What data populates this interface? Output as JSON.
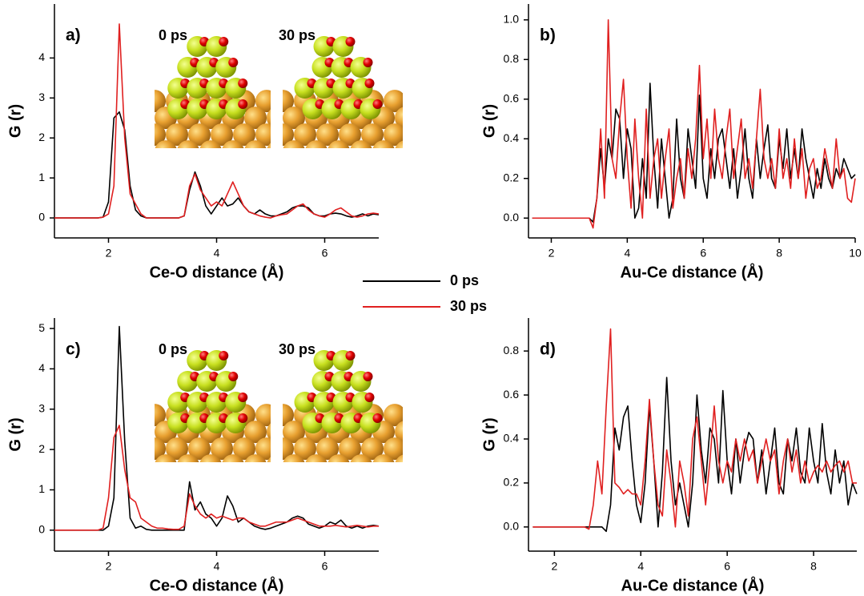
{
  "chart_data": [
    {
      "type": "line",
      "panel_label": "a)",
      "xlabel": "Ce-O distance (Å)",
      "ylabel": "G (r)",
      "inset_labels": [
        "0 ps",
        "30 ps"
      ],
      "x": [
        1,
        1.1,
        1.2,
        1.3,
        1.4,
        1.5,
        1.6,
        1.7,
        1.8,
        1.9,
        2,
        2.1,
        2.2,
        2.3,
        2.4,
        2.5,
        2.6,
        2.7,
        2.8,
        2.9,
        3,
        3.1,
        3.2,
        3.3,
        3.4,
        3.5,
        3.6,
        3.7,
        3.8,
        3.9,
        4,
        4.1,
        4.2,
        4.3,
        4.4,
        4.5,
        4.6,
        4.7,
        4.8,
        4.9,
        5,
        5.1,
        5.2,
        5.3,
        5.4,
        5.5,
        5.6,
        5.7,
        5.8,
        5.9,
        6,
        6.1,
        6.2,
        6.3,
        6.4,
        6.5,
        6.6,
        6.7,
        6.8,
        6.9,
        7
      ],
      "series": [
        {
          "name": "0 ps",
          "color": "#000000",
          "values": [
            0,
            0,
            0,
            0,
            0,
            0,
            0,
            0,
            0,
            0.02,
            0.4,
            2.5,
            2.65,
            2.2,
            0.8,
            0.2,
            0.05,
            0,
            0,
            0,
            0,
            0,
            0,
            0,
            0.05,
            0.7,
            1.15,
            0.8,
            0.3,
            0.1,
            0.3,
            0.5,
            0.3,
            0.35,
            0.5,
            0.3,
            0.15,
            0.1,
            0.2,
            0.1,
            0.05,
            0.05,
            0.1,
            0.15,
            0.25,
            0.3,
            0.3,
            0.25,
            0.1,
            0.05,
            0.05,
            0.1,
            0.12,
            0.1,
            0.05,
            0.02,
            0.05,
            0.1,
            0.05,
            0.1,
            0.08
          ]
        },
        {
          "name": "30 ps",
          "color": "#e02020",
          "values": [
            0,
            0,
            0,
            0,
            0,
            0,
            0,
            0,
            0,
            0.02,
            0.1,
            0.8,
            4.85,
            2.0,
            0.6,
            0.35,
            0.1,
            0,
            0,
            0,
            0,
            0,
            0,
            0,
            0.05,
            0.8,
            1.1,
            0.7,
            0.5,
            0.3,
            0.4,
            0.3,
            0.6,
            0.9,
            0.6,
            0.3,
            0.15,
            0.1,
            0.05,
            0.02,
            0,
            0.05,
            0.08,
            0.1,
            0.2,
            0.3,
            0.35,
            0.2,
            0.1,
            0.05,
            0.02,
            0.1,
            0.2,
            0.25,
            0.15,
            0.05,
            0.02,
            0.05,
            0.1,
            0.12,
            0.1
          ]
        }
      ],
      "xlim": [
        1,
        7
      ],
      "ylim": [
        -0.5,
        5.35
      ],
      "xticks": [
        2,
        4,
        6
      ],
      "yticks": [
        0,
        1,
        2,
        3,
        4
      ]
    },
    {
      "type": "line",
      "panel_label": "b)",
      "xlabel": "Au-Ce distance (Å)",
      "ylabel": "G (r)",
      "x": [
        1.5,
        2.9,
        3,
        3.1,
        3.2,
        3.3,
        3.4,
        3.5,
        3.6,
        3.7,
        3.8,
        3.9,
        4,
        4.1,
        4.2,
        4.3,
        4.4,
        4.5,
        4.6,
        4.7,
        4.8,
        4.9,
        5,
        5.1,
        5.2,
        5.3,
        5.4,
        5.5,
        5.6,
        5.7,
        5.8,
        5.9,
        6,
        6.1,
        6.2,
        6.3,
        6.4,
        6.5,
        6.6,
        6.7,
        6.8,
        6.9,
        7,
        7.1,
        7.2,
        7.3,
        7.4,
        7.5,
        7.6,
        7.7,
        7.8,
        7.9,
        8,
        8.1,
        8.2,
        8.3,
        8.4,
        8.5,
        8.6,
        8.7,
        8.8,
        8.9,
        9,
        9.1,
        9.2,
        9.3,
        9.4,
        9.5,
        9.6,
        9.7,
        9.8,
        9.9,
        10
      ],
      "series": [
        {
          "name": "0 ps",
          "color": "#000000",
          "values": [
            0,
            0,
            0,
            -0.02,
            0.1,
            0.35,
            0.15,
            0.4,
            0.3,
            0.55,
            0.5,
            0.2,
            0.45,
            0.35,
            0,
            0.05,
            0.3,
            0.1,
            0.68,
            0.3,
            0.05,
            0.4,
            0.2,
            0,
            0.1,
            0.5,
            0.2,
            0.1,
            0.45,
            0.3,
            0.15,
            0.62,
            0.2,
            0.1,
            0.35,
            0.2,
            0.4,
            0.45,
            0.3,
            0.15,
            0.35,
            0.1,
            0.25,
            0.45,
            0.2,
            0.1,
            0.4,
            0.2,
            0.35,
            0.47,
            0.2,
            0.15,
            0.4,
            0.25,
            0.45,
            0.2,
            0.35,
            0.2,
            0.45,
            0.3,
            0.2,
            0.1,
            0.25,
            0.15,
            0.3,
            0.2,
            0.15,
            0.25,
            0.2,
            0.3,
            0.25,
            0.2,
            0.22
          ]
        },
        {
          "name": "30 ps",
          "color": "#e02020",
          "values": [
            0,
            0,
            0,
            -0.05,
            0.1,
            0.45,
            0.1,
            1.0,
            0.3,
            0.2,
            0.5,
            0.7,
            0.3,
            0.05,
            0.5,
            0.2,
            0,
            0.55,
            0.1,
            0.3,
            0.4,
            0.1,
            0.3,
            0.45,
            0.05,
            0.2,
            0.3,
            0.1,
            0.35,
            0.2,
            0.4,
            0.77,
            0.3,
            0.5,
            0.2,
            0.55,
            0.3,
            0.2,
            0.4,
            0.55,
            0.2,
            0.35,
            0.5,
            0.2,
            0.3,
            0.15,
            0.4,
            0.65,
            0.3,
            0.2,
            0.3,
            0.15,
            0.45,
            0.2,
            0.3,
            0.15,
            0.4,
            0.2,
            0.35,
            0.1,
            0.25,
            0.3,
            0.15,
            0.2,
            0.35,
            0.25,
            0.15,
            0.4,
            0.2,
            0.25,
            0.1,
            0.08,
            0.2
          ]
        }
      ],
      "xlim": [
        1.4,
        10
      ],
      "ylim": [
        -0.1,
        1.08
      ],
      "xticks": [
        2,
        4,
        6,
        8,
        10
      ],
      "yticks": [
        {
          "value": 0,
          "label": "0.0"
        },
        0.2,
        0.4,
        0.6,
        0.8,
        {
          "value": 1,
          "label": "1.0"
        }
      ]
    },
    {
      "type": "line",
      "panel_label": "c)",
      "xlabel": "Ce-O distance (Å)",
      "ylabel": "G (r)",
      "inset_labels": [
        "0 ps",
        "30 ps"
      ],
      "x": [
        1,
        1.1,
        1.2,
        1.3,
        1.4,
        1.5,
        1.6,
        1.7,
        1.8,
        1.9,
        2,
        2.1,
        2.2,
        2.3,
        2.4,
        2.5,
        2.6,
        2.7,
        2.8,
        2.9,
        3,
        3.1,
        3.2,
        3.3,
        3.4,
        3.5,
        3.6,
        3.7,
        3.8,
        3.9,
        4,
        4.1,
        4.2,
        4.3,
        4.4,
        4.5,
        4.6,
        4.7,
        4.8,
        4.9,
        5,
        5.1,
        5.2,
        5.3,
        5.4,
        5.5,
        5.6,
        5.7,
        5.8,
        5.9,
        6,
        6.1,
        6.2,
        6.3,
        6.4,
        6.5,
        6.6,
        6.7,
        6.8,
        6.9,
        7
      ],
      "series": [
        {
          "name": "0 ps",
          "color": "#000000",
          "values": [
            0,
            0,
            0,
            0,
            0,
            0,
            0,
            0,
            0,
            0,
            0.1,
            0.8,
            5.05,
            2.2,
            0.3,
            0.05,
            0.1,
            0.02,
            0,
            0,
            0,
            0,
            0,
            0,
            0,
            1.2,
            0.5,
            0.7,
            0.4,
            0.3,
            0.1,
            0.3,
            0.85,
            0.6,
            0.2,
            0.3,
            0.2,
            0.1,
            0.05,
            0.02,
            0.05,
            0.1,
            0.15,
            0.2,
            0.3,
            0.35,
            0.3,
            0.15,
            0.1,
            0.05,
            0.1,
            0.2,
            0.15,
            0.25,
            0.1,
            0.05,
            0.1,
            0.05,
            0.1,
            0.12,
            0.1
          ]
        },
        {
          "name": "30 ps",
          "color": "#e02020",
          "values": [
            0,
            0,
            0,
            0,
            0,
            0,
            0,
            0,
            0,
            0.05,
            0.8,
            2.3,
            2.6,
            1.5,
            0.8,
            0.7,
            0.3,
            0.2,
            0.1,
            0.05,
            0.05,
            0.03,
            0.02,
            0.02,
            0.1,
            0.9,
            0.6,
            0.4,
            0.3,
            0.4,
            0.3,
            0.35,
            0.3,
            0.25,
            0.3,
            0.3,
            0.2,
            0.15,
            0.1,
            0.1,
            0.15,
            0.2,
            0.2,
            0.2,
            0.25,
            0.3,
            0.25,
            0.2,
            0.15,
            0.1,
            0.1,
            0.1,
            0.12,
            0.1,
            0.08,
            0.1,
            0.12,
            0.1,
            0.08,
            0.1,
            0.1
          ]
        }
      ],
      "xlim": [
        1,
        7
      ],
      "ylim": [
        -0.52,
        5.26
      ],
      "xticks": [
        2,
        4,
        6
      ],
      "yticks": [
        0,
        1,
        2,
        3,
        4,
        5
      ]
    },
    {
      "type": "line",
      "panel_label": "d)",
      "xlabel": "Au-Ce distance (Å)",
      "ylabel": "G (r)",
      "x": [
        1.5,
        2.7,
        2.8,
        2.9,
        3,
        3.1,
        3.2,
        3.3,
        3.4,
        3.5,
        3.6,
        3.7,
        3.8,
        3.9,
        4,
        4.1,
        4.2,
        4.3,
        4.4,
        4.5,
        4.6,
        4.7,
        4.8,
        4.9,
        5,
        5.1,
        5.2,
        5.3,
        5.4,
        5.5,
        5.6,
        5.7,
        5.8,
        5.9,
        6,
        6.1,
        6.2,
        6.3,
        6.4,
        6.5,
        6.6,
        6.7,
        6.8,
        6.9,
        7,
        7.1,
        7.2,
        7.3,
        7.4,
        7.5,
        7.6,
        7.7,
        7.8,
        7.9,
        8,
        8.1,
        8.2,
        8.3,
        8.4,
        8.5,
        8.6,
        8.7,
        8.8,
        8.9,
        9
      ],
      "series": [
        {
          "name": "0 ps",
          "color": "#000000",
          "values": [
            0,
            0,
            0,
            0,
            0,
            0,
            -0.02,
            0.1,
            0.45,
            0.35,
            0.5,
            0.55,
            0.3,
            0.1,
            0.02,
            0.2,
            0.55,
            0.3,
            0,
            0.25,
            0.68,
            0.3,
            0.1,
            0.2,
            0.1,
            0,
            0.2,
            0.6,
            0.35,
            0.2,
            0.45,
            0.4,
            0.2,
            0.62,
            0.3,
            0.15,
            0.4,
            0.2,
            0.35,
            0.43,
            0.4,
            0.2,
            0.35,
            0.15,
            0.3,
            0.45,
            0.2,
            0.15,
            0.4,
            0.3,
            0.45,
            0.25,
            0.2,
            0.45,
            0.3,
            0.2,
            0.47,
            0.25,
            0.15,
            0.35,
            0.2,
            0.3,
            0.1,
            0.2,
            0.15
          ]
        },
        {
          "name": "30 ps",
          "color": "#e02020",
          "values": [
            0,
            0,
            -0.01,
            0.1,
            0.3,
            0.15,
            0.55,
            0.9,
            0.2,
            0.18,
            0.15,
            0.17,
            0.15,
            0.15,
            0.1,
            0.3,
            0.58,
            0.3,
            0.1,
            0.05,
            0.35,
            0.2,
            0,
            0.3,
            0.2,
            0.05,
            0.4,
            0.5,
            0.3,
            0.1,
            0.3,
            0.55,
            0.3,
            0.2,
            0.3,
            0.25,
            0.4,
            0.3,
            0.4,
            0.3,
            0.35,
            0.2,
            0.3,
            0.4,
            0.3,
            0.35,
            0.15,
            0.3,
            0.4,
            0.25,
            0.35,
            0.2,
            0.3,
            0.2,
            0.25,
            0.28,
            0.25,
            0.3,
            0.25,
            0.28,
            0.3,
            0.25,
            0.3,
            0.2,
            0.2
          ]
        }
      ],
      "xlim": [
        1.4,
        9
      ],
      "ylim": [
        -0.11,
        0.95
      ],
      "xticks": [
        2,
        4,
        6,
        8
      ],
      "yticks": [
        {
          "value": 0,
          "label": "0.0"
        },
        0.2,
        0.4,
        0.6,
        0.8
      ]
    }
  ]
}
